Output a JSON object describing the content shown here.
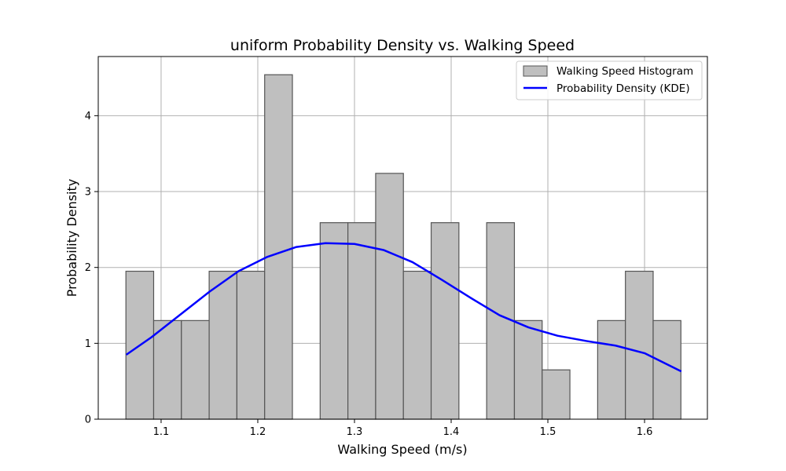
{
  "chart_data": {
    "type": "bar",
    "title": "uniform Probability Density vs. Walking Speed",
    "xlabel": "Walking Speed (m/s)",
    "ylabel": "Probability Density",
    "xlim": [
      1.035,
      1.665
    ],
    "ylim": [
      0,
      4.78
    ],
    "grid": true,
    "legend_placement": "top-right",
    "xticks": [
      1.1,
      1.2,
      1.3,
      1.4,
      1.5,
      1.6
    ],
    "xtick_labels": [
      "1.1",
      "1.2",
      "1.3",
      "1.4",
      "1.5",
      "1.6"
    ],
    "yticks": [
      0,
      1,
      2,
      3,
      4
    ],
    "ytick_labels": [
      "0",
      "1",
      "2",
      "3",
      "4"
    ],
    "histogram": {
      "name": "Walking Speed Histogram",
      "bin_edges": [
        1.0636,
        1.0923,
        1.121,
        1.1497,
        1.1784,
        1.2071,
        1.2358,
        1.2645,
        1.2932,
        1.3219,
        1.3506,
        1.3793,
        1.408,
        1.4367,
        1.4654,
        1.4941,
        1.5228,
        1.5515,
        1.5802,
        1.6089,
        1.6376
      ],
      "values": [
        1.95,
        1.3,
        1.3,
        1.95,
        1.95,
        4.54,
        0,
        2.59,
        2.59,
        3.24,
        1.95,
        2.59,
        0,
        2.59,
        1.3,
        0.65,
        0,
        1.3,
        1.95,
        1.3
      ],
      "fill_color": "#bfbfbf",
      "edge_color": "#555555"
    },
    "kde": {
      "name": "Probability Density (KDE)",
      "x": [
        1.064,
        1.09,
        1.12,
        1.15,
        1.18,
        1.21,
        1.24,
        1.27,
        1.3,
        1.33,
        1.36,
        1.39,
        1.42,
        1.45,
        1.48,
        1.51,
        1.54,
        1.57,
        1.6,
        1.638
      ],
      "y": [
        0.85,
        1.08,
        1.38,
        1.68,
        1.95,
        2.14,
        2.27,
        2.32,
        2.31,
        2.23,
        2.07,
        1.84,
        1.6,
        1.37,
        1.21,
        1.1,
        1.03,
        0.97,
        0.87,
        0.63
      ],
      "color": "#0000ff"
    }
  }
}
